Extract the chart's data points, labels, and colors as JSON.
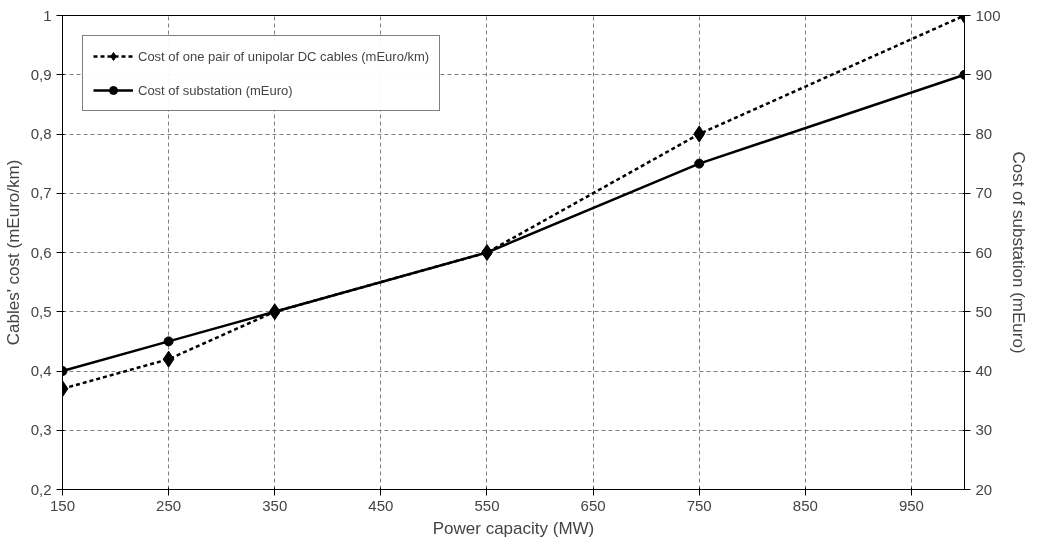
{
  "chart_data": {
    "type": "line",
    "xlabel": "Power capacity (MW)",
    "ylabel": "Cables' cost (mEuro/km)",
    "y2label": "Cost of substation (mEuro)",
    "x": [
      150,
      250,
      350,
      550,
      750,
      1000
    ],
    "series": [
      {
        "name": "Cost of one pair of unipolar DC cables (mEuro/km)",
        "color": "#000000",
        "values": [
          0.37,
          0.42,
          0.5,
          0.6,
          0.8,
          1.0
        ],
        "marker": "diamond",
        "line_style": "dotted"
      },
      {
        "name": "Cost of substation (mEuro)",
        "color": "#000000",
        "values": [
          40,
          45,
          50,
          60,
          75,
          90
        ],
        "marker": "circle",
        "line_style": "solid",
        "axis": "y2"
      }
    ],
    "xlim": [
      150,
      1000
    ],
    "xticks": [
      150,
      250,
      350,
      450,
      550,
      650,
      750,
      850,
      950
    ],
    "ylim": [
      0.2,
      1
    ],
    "yticks": [
      {
        "value": 0.2,
        "label": "0,2"
      },
      {
        "value": 0.3,
        "label": "0,3"
      },
      {
        "value": 0.4,
        "label": "0,4"
      },
      {
        "value": 0.5,
        "label": "0,5"
      },
      {
        "value": 0.6,
        "label": "0,6"
      },
      {
        "value": 0.7,
        "label": "0,7"
      },
      {
        "value": 0.8,
        "label": "0,8"
      },
      {
        "value": 0.9,
        "label": "0,9"
      },
      {
        "value": 1,
        "label": "1"
      }
    ],
    "y2lim": [
      20,
      100
    ],
    "y2ticks": [
      20,
      30,
      40,
      50,
      60,
      70,
      80,
      90,
      100
    ],
    "grid": true,
    "legend": "top left"
  }
}
